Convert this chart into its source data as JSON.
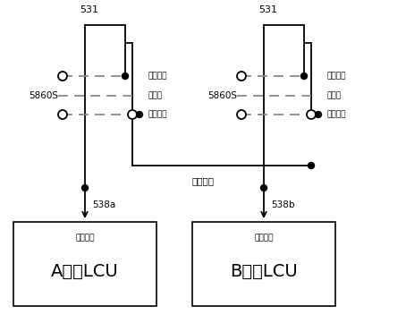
{
  "bg_color": "#ffffff",
  "line_color": "#000000",
  "dashed_color": "#888888",
  "label_531": "531",
  "label_5860S": "5860S",
  "label_ben": "本节切障",
  "label_zheng": "正常位",
  "label_ta": "它节切障",
  "label_cable": "重联电缆",
  "label_538a": "538a",
  "label_538b": "538b",
  "label_signal": "切隐信号",
  "label_A": "A节车LCU",
  "label_B": "B节车LCU"
}
